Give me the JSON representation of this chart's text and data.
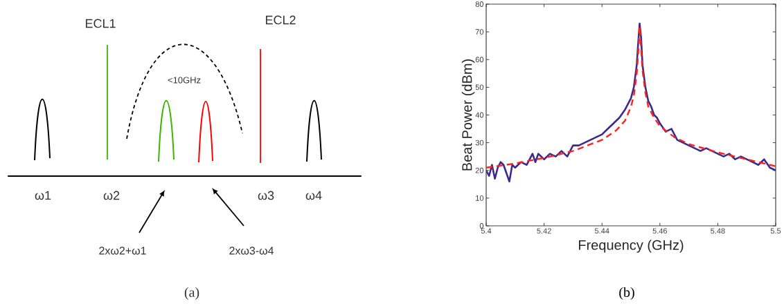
{
  "chart_data": [
    {
      "type": "other",
      "annotations": [
        "ECL1",
        "ECL2",
        "<10GHz",
        "ω1",
        "ω2",
        "ω3",
        "ω4",
        "2xω2+ω1",
        "2xω3-ω4",
        "(a)"
      ]
    },
    {
      "type": "line",
      "xlabel": "Frequency (GHz)",
      "ylabel": "Beat Power (dBm)",
      "xlim": [
        5.4,
        5.5
      ],
      "ylim": [
        0,
        80
      ],
      "xticks": [
        5.4,
        5.42,
        5.44,
        5.46,
        5.48,
        5.5
      ],
      "yticks": [
        0,
        10,
        20,
        30,
        40,
        50,
        60,
        70,
        80
      ],
      "annotations": [
        "(b)"
      ],
      "series": [
        {
          "color": "#3b2a8c",
          "line_style": "solid",
          "x": [
            5.4,
            5.401,
            5.402,
            5.403,
            5.404,
            5.405,
            5.406,
            5.407,
            5.408,
            5.409,
            5.41,
            5.412,
            5.414,
            5.416,
            5.417,
            5.418,
            5.42,
            5.422,
            5.424,
            5.426,
            5.428,
            5.43,
            5.432,
            5.434,
            5.436,
            5.438,
            5.44,
            5.442,
            5.444,
            5.446,
            5.448,
            5.45,
            5.451,
            5.452,
            5.4525,
            5.453,
            5.4535,
            5.454,
            5.455,
            5.456,
            5.457,
            5.458,
            5.459,
            5.46,
            5.462,
            5.464,
            5.466,
            5.468,
            5.47,
            5.472,
            5.474,
            5.476,
            5.478,
            5.48,
            5.482,
            5.484,
            5.486,
            5.488,
            5.49,
            5.492,
            5.494,
            5.496,
            5.498,
            5.5
          ],
          "values": [
            20,
            18,
            22,
            17,
            21,
            23,
            22,
            19,
            16,
            22,
            21,
            23,
            22,
            26,
            23,
            26,
            24,
            26,
            25,
            27,
            25,
            29,
            29,
            30,
            31,
            32,
            33,
            35,
            37,
            39,
            42,
            46,
            50,
            58,
            66,
            73,
            68,
            58,
            50,
            45,
            43,
            40,
            39,
            37,
            34,
            35,
            31,
            30,
            29,
            28,
            27,
            28,
            27,
            26,
            25,
            26,
            24,
            25,
            24,
            23,
            22,
            24,
            21,
            20
          ]
        },
        {
          "color": "#ff2020",
          "line_style": "dashed",
          "x": [
            5.4,
            5.41,
            5.42,
            5.43,
            5.44,
            5.445,
            5.448,
            5.45,
            5.451,
            5.452,
            5.4525,
            5.453,
            5.4535,
            5.454,
            5.455,
            5.456,
            5.458,
            5.46,
            5.465,
            5.47,
            5.48,
            5.49,
            5.5
          ],
          "values": [
            21,
            22.5,
            24.5,
            27,
            31,
            34.5,
            38,
            43,
            47,
            55,
            62,
            72,
            64,
            56,
            48,
            43,
            39,
            36,
            32,
            29.5,
            26.5,
            24,
            21.5
          ]
        }
      ]
    }
  ]
}
